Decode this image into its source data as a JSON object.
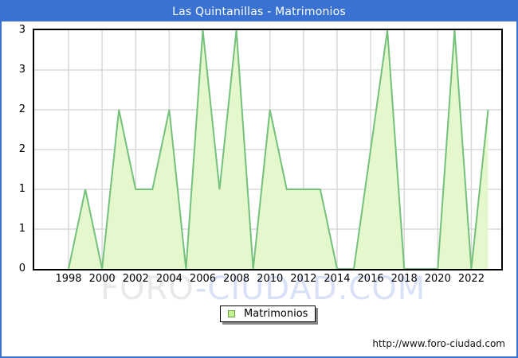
{
  "title": "Las Quintanillas - Matrimonios",
  "legend": {
    "label": "Matrimonios"
  },
  "watermark": {
    "part1": "FORO",
    "part2": "-CIUDAD.COM"
  },
  "footer": {
    "url": "http://www.foro-ciudad.com"
  },
  "colors": {
    "frame_blue": "#3a72d4",
    "title_text": "#ffffff",
    "area_fill": "#e4f7cd",
    "area_line": "#74c17c",
    "grid": "#d9d9d9",
    "plot_border": "#000000",
    "legend_swatch_fill": "#c6ee92",
    "legend_swatch_border": "#67a33b",
    "watermark_gray": "#e9e9e9",
    "watermark_blue": "#d8e1f7",
    "axis_text": "#000000"
  },
  "chart_data": {
    "type": "area",
    "title": "Las Quintanillas - Matrimonios",
    "series_name": "Matrimonios",
    "x": [
      1998,
      1999,
      2000,
      2001,
      2002,
      2003,
      2004,
      2005,
      2006,
      2007,
      2008,
      2009,
      2010,
      2011,
      2012,
      2013,
      2014,
      2015,
      2016,
      2017,
      2018,
      2019,
      2020,
      2021,
      2022,
      2023
    ],
    "values": [
      0,
      1,
      0,
      2,
      1,
      1,
      2,
      0,
      3,
      1,
      3,
      0,
      2,
      1,
      1,
      1,
      0,
      0,
      1.5,
      3,
      0,
      0,
      0,
      3,
      0,
      2
    ],
    "ylim": [
      0,
      3
    ],
    "ytick_step": 0.5,
    "ytick_labels_top_down": [
      "3",
      "3",
      "2",
      "2",
      "1",
      "1",
      "0"
    ],
    "xtick_labels": [
      "1998",
      "2000",
      "2002",
      "2004",
      "2006",
      "2008",
      "2010",
      "2012",
      "2014",
      "2016",
      "2018",
      "2020",
      "2022"
    ],
    "grid": true,
    "legend_position": "bottom-center"
  }
}
